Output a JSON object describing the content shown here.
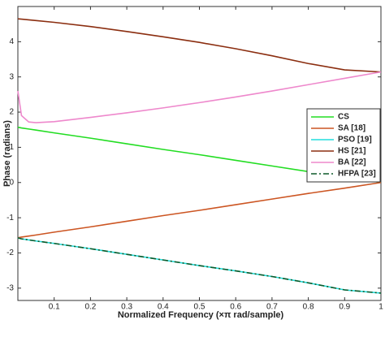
{
  "chart_data": {
    "type": "line",
    "x_label": "Normalized Frequency (×π rad/sample)",
    "y_label": "Phase (radians)",
    "x": [
      0,
      0.01,
      0.03,
      0.05,
      0.1,
      0.2,
      0.3,
      0.4,
      0.5,
      0.6,
      0.7,
      0.8,
      0.9,
      1
    ],
    "series": [
      {
        "name": "CS",
        "color": "#22dd22",
        "dash": "solid",
        "values": [
          1.57,
          1.55,
          1.52,
          1.49,
          1.41,
          1.26,
          1.1,
          0.94,
          0.79,
          0.63,
          0.47,
          0.31,
          0.16,
          0
        ]
      },
      {
        "name": "SA [18]",
        "color": "#cc5522",
        "dash": "solid",
        "values": [
          -1.57,
          -1.55,
          -1.52,
          -1.49,
          -1.41,
          -1.26,
          -1.1,
          -0.94,
          -0.79,
          -0.63,
          -0.47,
          -0.31,
          -0.16,
          0
        ]
      },
      {
        "name": "PSO [19]",
        "color": "#22dddd",
        "dash": "solid",
        "values": [
          -1.57,
          -1.6,
          -1.63,
          -1.66,
          -1.73,
          -1.88,
          -2.04,
          -2.2,
          -2.36,
          -2.51,
          -2.67,
          -2.85,
          -3.05,
          -3.14
        ]
      },
      {
        "name": "HS [21]",
        "color": "#8b2e10",
        "dash": "solid",
        "values": [
          4.65,
          4.64,
          4.62,
          4.6,
          4.55,
          4.43,
          4.29,
          4.14,
          3.98,
          3.8,
          3.6,
          3.38,
          3.2,
          3.14
        ]
      },
      {
        "name": "BA [22]",
        "color": "#ee88cc",
        "dash": "solid",
        "values": [
          2.6,
          1.9,
          1.72,
          1.7,
          1.73,
          1.85,
          1.98,
          2.12,
          2.27,
          2.43,
          2.6,
          2.78,
          2.96,
          3.14
        ]
      },
      {
        "name": "HFPA [23]",
        "color": "#0e5a2a",
        "dash": "dashdot",
        "values": [
          -1.57,
          -1.6,
          -1.63,
          -1.66,
          -1.73,
          -1.88,
          -2.04,
          -2.2,
          -2.36,
          -2.51,
          -2.67,
          -2.85,
          -3.05,
          -3.14
        ]
      }
    ],
    "xlim": [
      0,
      1
    ],
    "xticks": [
      0.1,
      0.2,
      0.3,
      0.4,
      0.5,
      0.6,
      0.7,
      0.8,
      0.9,
      1
    ],
    "ylim": [
      -3.35,
      5
    ],
    "yticks": [
      -3,
      -2,
      -1,
      0,
      1,
      2,
      3,
      4
    ],
    "grid": false,
    "legend": "right"
  }
}
